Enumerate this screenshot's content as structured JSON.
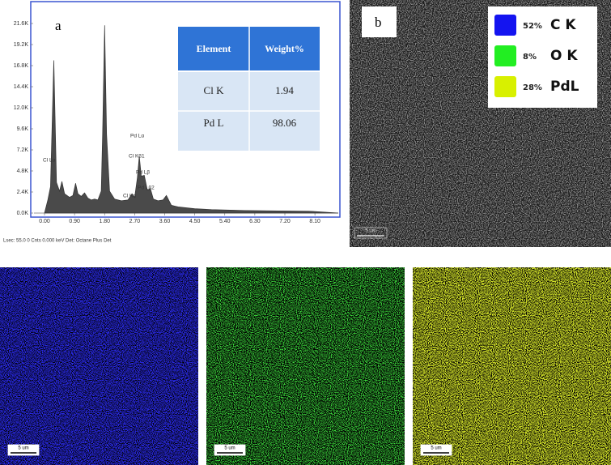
{
  "chart_data": {
    "type": "area",
    "panel_label": "a",
    "color": "#4a4a4a",
    "frame_color": "#3a55d0",
    "x": [
      0,
      0.1,
      0.18,
      0.28,
      0.36,
      0.45,
      0.52,
      0.6,
      0.75,
      0.85,
      0.93,
      1.0,
      1.1,
      1.2,
      1.3,
      1.4,
      1.5,
      1.6,
      1.7,
      1.74,
      1.8,
      1.86,
      1.95,
      2.1,
      2.3,
      2.5,
      2.62,
      2.7,
      2.78,
      2.84,
      2.9,
      2.99,
      3.08,
      3.17,
      3.26,
      3.4,
      3.55,
      3.65,
      3.8,
      4.0,
      4.5,
      5.0,
      6.0,
      7.0,
      8.0,
      8.8
    ],
    "values": [
      0,
      1500,
      3000,
      17400,
      3500,
      2500,
      3600,
      2200,
      1800,
      2000,
      3400,
      2200,
      1900,
      2300,
      1700,
      1500,
      1600,
      1500,
      2500,
      9000,
      21400,
      9000,
      2500,
      1600,
      1400,
      1500,
      2200,
      1800,
      4000,
      6500,
      4200,
      4300,
      2600,
      2800,
      1600,
      1400,
      1500,
      2000,
      900,
      700,
      500,
      400,
      300,
      250,
      200,
      0
    ],
    "xlim": [
      0,
      8.8
    ],
    "ylim": [
      0,
      21600
    ],
    "xticks": [
      {
        "value": 0,
        "label": "0.00"
      },
      {
        "value": 0.9,
        "label": "0.90"
      },
      {
        "value": 1.8,
        "label": "1.80"
      },
      {
        "value": 2.7,
        "label": "2.70"
      },
      {
        "value": 3.6,
        "label": "3.60"
      },
      {
        "value": 4.5,
        "label": "4.50"
      },
      {
        "value": 5.4,
        "label": "5.40"
      },
      {
        "value": 6.3,
        "label": "6.30"
      },
      {
        "value": 7.2,
        "label": "7.20"
      },
      {
        "value": 8.1,
        "label": "8.10"
      }
    ],
    "yticks": [
      {
        "value": 0,
        "label": "0.0K"
      },
      {
        "value": 2400,
        "label": "2.4K"
      },
      {
        "value": 4800,
        "label": "4.8K"
      },
      {
        "value": 7200,
        "label": "7.2K"
      },
      {
        "value": 9600,
        "label": "9.6K"
      },
      {
        "value": 12000,
        "label": "12.0K"
      },
      {
        "value": 14400,
        "label": "14.4K"
      },
      {
        "value": 16800,
        "label": "16.8K"
      },
      {
        "value": 19200,
        "label": "19.2K"
      },
      {
        "value": 21600,
        "label": "21.6K"
      }
    ],
    "annotations": [
      "Cl Lα",
      "Pd Lα",
      "Cl Kβ1",
      "Pd Lβ",
      "Pd Lβ2",
      "Cl Kα"
    ],
    "footer": "Lsec: 55.0 0 Cnts 0.000 keV Det: Octane Plus Det",
    "table": {
      "header": [
        "Element",
        "Weight%"
      ],
      "rows": [
        [
          "Cl K",
          "1.94"
        ],
        [
          "Pd L",
          "98.06"
        ]
      ]
    }
  },
  "panel_b": {
    "label": "b",
    "scale_bar": "5 um",
    "legend": [
      {
        "color": "#1414f0",
        "percent": "52%",
        "label": "C K"
      },
      {
        "color": "#22ee22",
        "percent": "8%",
        "label": "O K"
      },
      {
        "color": "#d8f000",
        "percent": "28%",
        "label": "PdL"
      }
    ]
  },
  "maps": [
    {
      "color": "#2a2ae8",
      "scale_bar": "5 um"
    },
    {
      "color": "#3ddc3d",
      "scale_bar": "5 um"
    },
    {
      "color": "#d6e62a",
      "scale_bar": "5 um"
    }
  ]
}
